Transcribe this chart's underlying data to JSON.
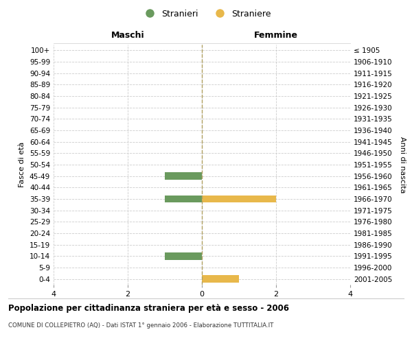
{
  "age_groups": [
    "0-4",
    "5-9",
    "10-14",
    "15-19",
    "20-24",
    "25-29",
    "30-34",
    "35-39",
    "40-44",
    "45-49",
    "50-54",
    "55-59",
    "60-64",
    "65-69",
    "70-74",
    "75-79",
    "80-84",
    "85-89",
    "90-94",
    "95-99",
    "100+"
  ],
  "birth_years": [
    "2001-2005",
    "1996-2000",
    "1991-1995",
    "1986-1990",
    "1981-1985",
    "1976-1980",
    "1971-1975",
    "1966-1970",
    "1961-1965",
    "1956-1960",
    "1951-1955",
    "1946-1950",
    "1941-1945",
    "1936-1940",
    "1931-1935",
    "1926-1930",
    "1921-1925",
    "1916-1920",
    "1911-1915",
    "1906-1910",
    "≤ 1905"
  ],
  "maschi_stranieri": [
    0,
    0,
    1,
    0,
    0,
    0,
    0,
    1,
    0,
    1,
    0,
    0,
    0,
    0,
    0,
    0,
    0,
    0,
    0,
    0,
    0
  ],
  "femmine_straniere": [
    1,
    0,
    0,
    0,
    0,
    0,
    0,
    2,
    0,
    0,
    0,
    0,
    0,
    0,
    0,
    0,
    0,
    0,
    0,
    0,
    0
  ],
  "color_maschi": "#6a9a5e",
  "color_femmine": "#e8b84b",
  "xlim": 4,
  "title": "Popolazione per cittadinanza straniera per età e sesso - 2006",
  "subtitle": "COMUNE DI COLLEPIETRO (AQ) - Dati ISTAT 1° gennaio 2006 - Elaborazione TUTTITALIA.IT",
  "ylabel_left": "Fasce di età",
  "ylabel_right": "Anni di nascita",
  "label_maschi": "Maschi",
  "label_femmine": "Femmine",
  "legend_stranieri": "Stranieri",
  "legend_straniere": "Straniere",
  "bg_color": "#ffffff",
  "bar_height": 0.65
}
